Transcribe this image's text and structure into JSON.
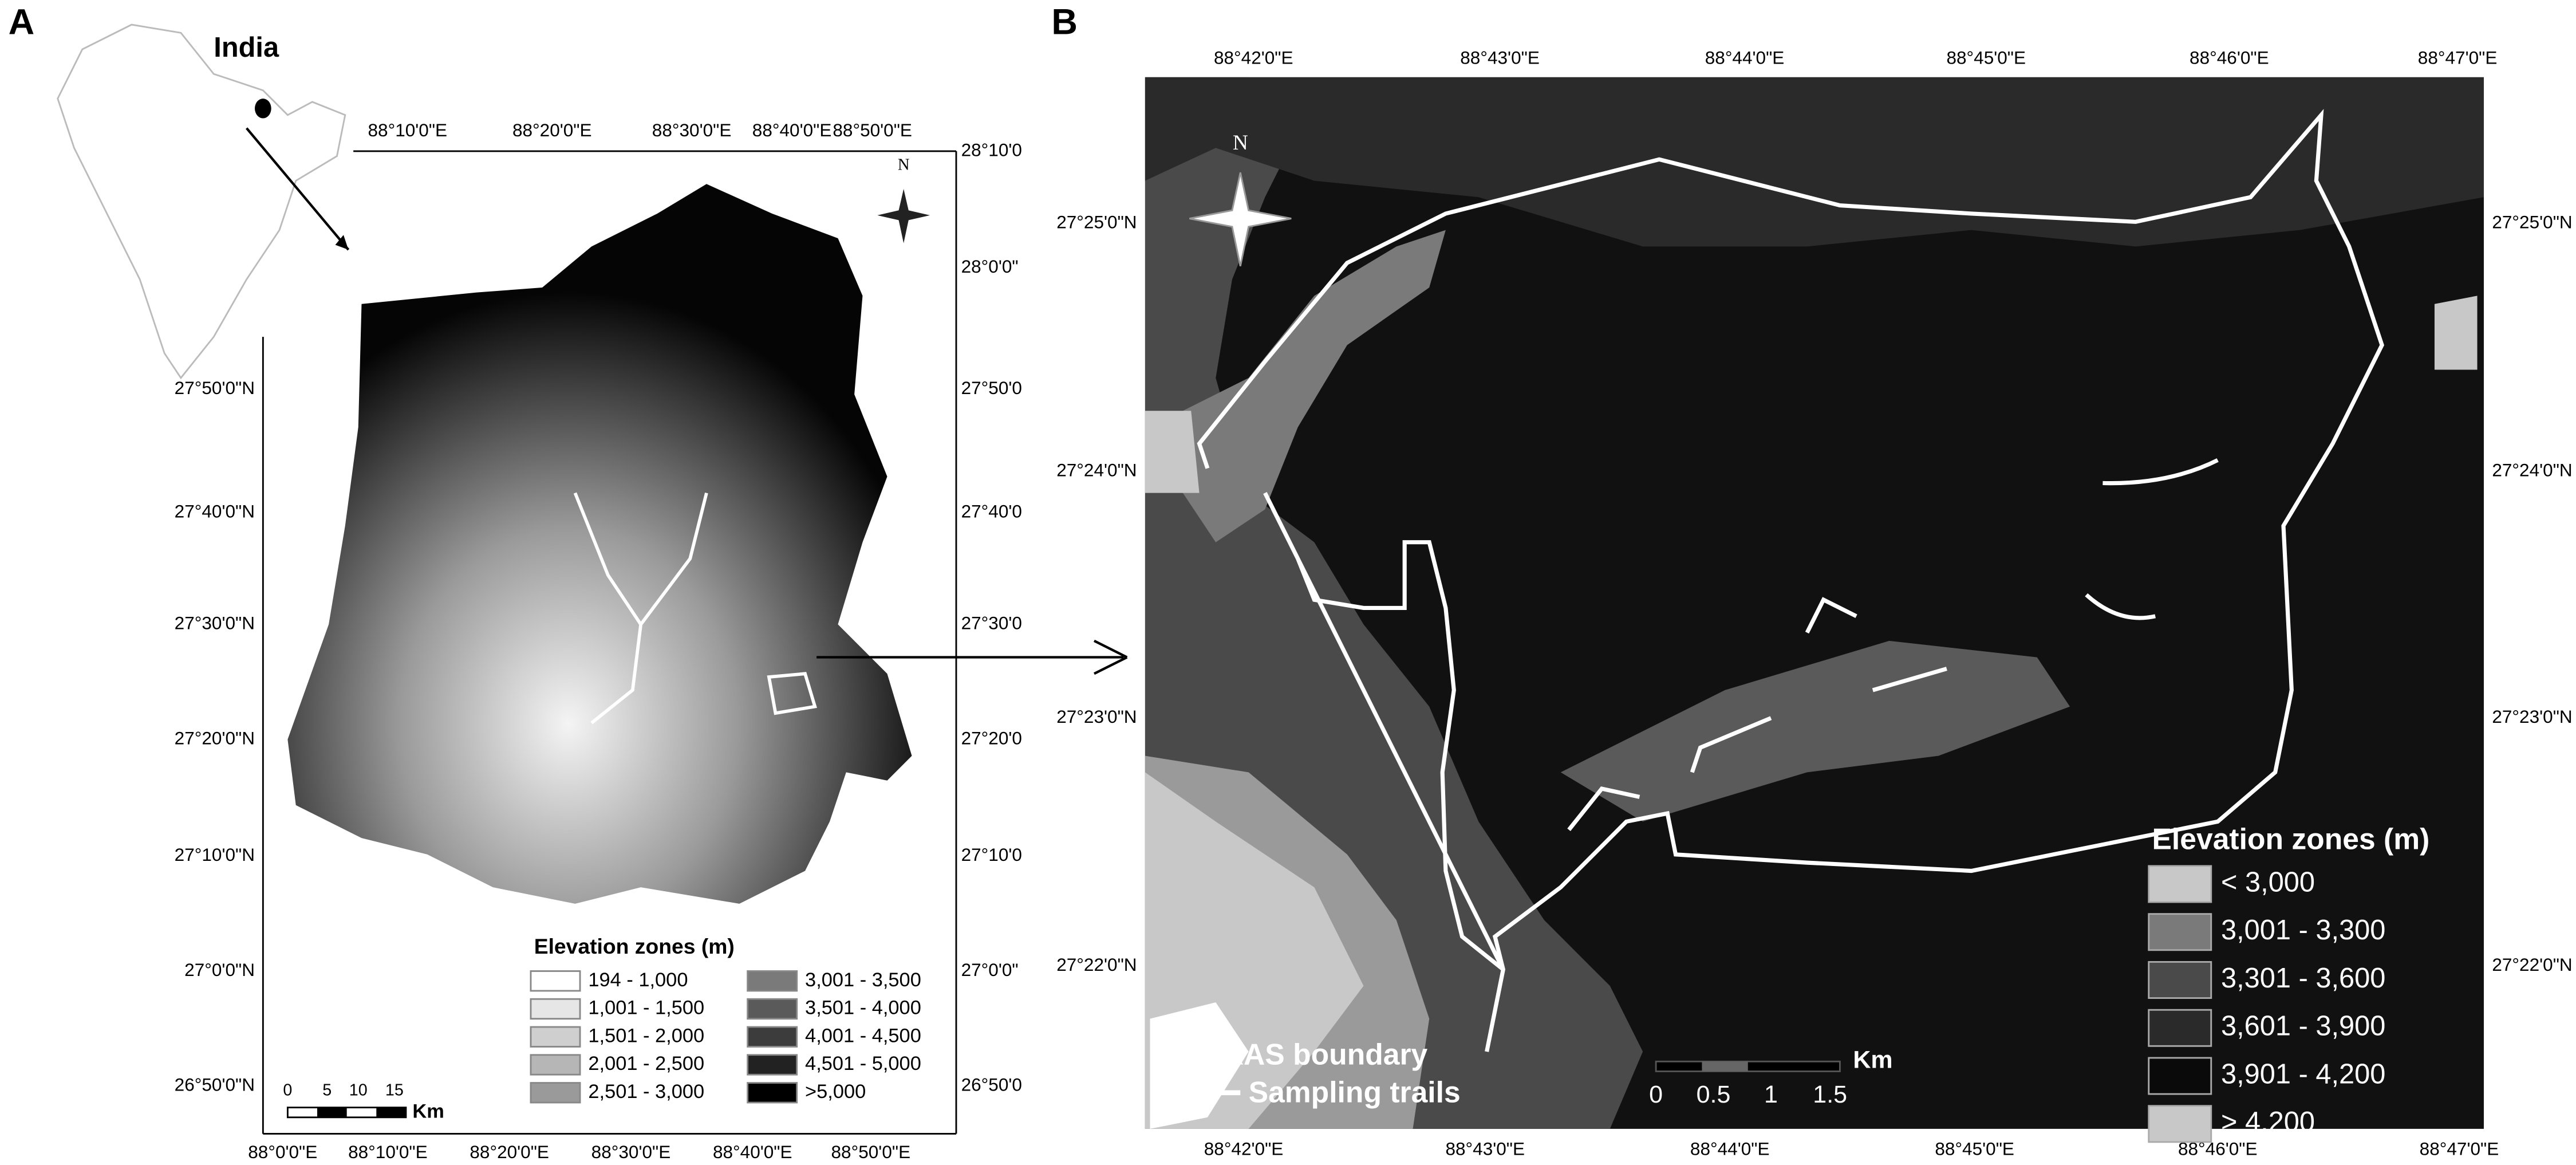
{
  "panel_a": {
    "label": "A",
    "inset_label": "India",
    "north": "N",
    "top_ticks": [
      "88°10'0\"E",
      "88°20'0\"E",
      "88°30'0\"E",
      "88°40'0\"E",
      "88°50'0\"E"
    ],
    "bottom_ticks": [
      "88°0'0\"E",
      "88°10'0\"E",
      "88°20'0\"E",
      "88°30'0\"E",
      "88°40'0\"E",
      "88°50'0\"E"
    ],
    "left_ticks": [
      "27°50'0\"N",
      "27°40'0\"N",
      "27°30'0\"N",
      "27°20'0\"N",
      "27°10'0\"N",
      "27°0'0\"N",
      "26°50'0\"N"
    ],
    "right_ticks": [
      "28°10'0",
      "28°0'0\"",
      "27°50'0",
      "27°40'0",
      "27°30'0",
      "27°20'0",
      "27°10'0",
      "27°0'0\"",
      "26°50'0"
    ],
    "legend": {
      "title": "Elevation zones (m)",
      "items": [
        "194 - 1,000",
        "1,001 - 1,500",
        "1,501 - 2,000",
        "2,001 - 2,500",
        "2,501 - 3,000",
        "3,001 - 3,500",
        "3,501 - 4,000",
        "4,001 - 4,500",
        "4,501 - 5,000",
        ">5,000"
      ]
    },
    "scale": {
      "ticks": [
        "0",
        "5",
        "10",
        "15"
      ],
      "unit": "Km"
    }
  },
  "panel_b": {
    "label": "B",
    "north": "N",
    "top_ticks": [
      "88°42'0\"E",
      "88°43'0\"E",
      "88°44'0\"E",
      "88°45'0\"E",
      "88°46'0\"E",
      "88°47'0\"E"
    ],
    "bottom_ticks": [
      "88°42'0\"E",
      "88°43'0\"E",
      "88°44'0\"E",
      "88°45'0\"E",
      "88°46'0\"E",
      "88°47'0\"E"
    ],
    "left_ticks": [
      "27°25'0\"N",
      "27°24'0\"N",
      "27°23'0\"N",
      "27°22'0\"N"
    ],
    "right_ticks": [
      "27°25'0\"N",
      "27°24'0\"N",
      "27°23'0\"N",
      "27°22'0\"N"
    ],
    "legend": {
      "title": "Elevation zones (m)",
      "items": [
        "< 3,000",
        "3,001 - 3,300",
        "3,301 - 3,600",
        "3,601 - 3,900",
        "3,901 - 4,200",
        "> 4,200"
      ]
    },
    "boundary_label": "KAS boundary",
    "trails_label": "Sampling trails",
    "scale": {
      "ticks": [
        "0",
        "0.5",
        "1",
        "1.5"
      ],
      "unit": "Km"
    }
  }
}
